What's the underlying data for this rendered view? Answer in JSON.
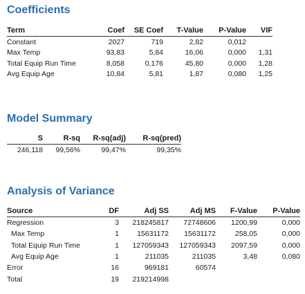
{
  "coefficients": {
    "title": "Coefficients",
    "headers": [
      "Term",
      "Coef",
      "SE Coef",
      "T-Value",
      "P-Value",
      "VIF"
    ],
    "rows": [
      [
        "Constant",
        "2027",
        "719",
        "2,82",
        "0,012",
        ""
      ],
      [
        "Max Temp",
        "93,83",
        "5,84",
        "16,06",
        "0,000",
        "1,31"
      ],
      [
        "Total Equip Run Time",
        "8,058",
        "0,176",
        "45,80",
        "0,000",
        "1,28"
      ],
      [
        "Avg Equip Age",
        "10,84",
        "5,81",
        "1,87",
        "0,080",
        "1,25"
      ]
    ]
  },
  "model_summary": {
    "title": "Model Summary",
    "headers": [
      "S",
      "R-sq",
      "R-sq(adj)",
      "R-sq(pred)"
    ],
    "rows": [
      [
        "246,118",
        "99,56%",
        "99,47%",
        "99,35%"
      ]
    ]
  },
  "anova": {
    "title": "Analysis of Variance",
    "headers": [
      "Source",
      "DF",
      "Adj SS",
      "Adj MS",
      "F-Value",
      "P-Value"
    ],
    "rows": [
      [
        "Regression",
        "3",
        "218245817",
        "72748606",
        "1200,99",
        "0,000"
      ],
      [
        "  Max Temp",
        "1",
        "15631172",
        "15631172",
        "258,05",
        "0,000"
      ],
      [
        "  Total Equip Run Time",
        "1",
        "127059343",
        "127059343",
        "2097,59",
        "0,000"
      ],
      [
        "  Avg Equip Age",
        "1",
        "211035",
        "211035",
        "3,48",
        "0,080"
      ],
      [
        "Error",
        "16",
        "969181",
        "60574",
        "",
        ""
      ],
      [
        "Total",
        "19",
        "219214998",
        "",
        "",
        ""
      ]
    ]
  },
  "colors": {
    "title": "#2a6fad"
  }
}
